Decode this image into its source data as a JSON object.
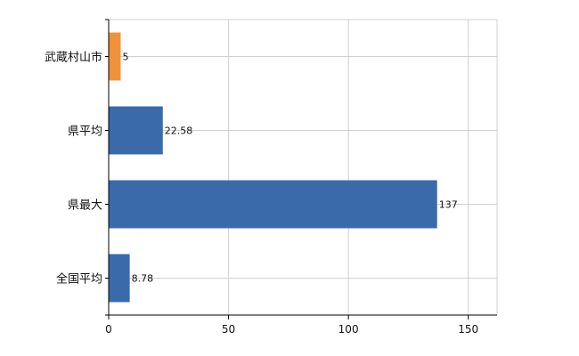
{
  "chart_data": {
    "type": "bar",
    "orientation": "horizontal",
    "categories": [
      "武蔵村山市",
      "県平均",
      "県最大",
      "全国平均"
    ],
    "values": [
      5,
      22.58,
      137,
      8.78
    ],
    "value_labels": [
      "5",
      "22.58",
      "137",
      "8.78"
    ],
    "bar_colors": [
      "#F0923A",
      "#3A6AAA",
      "#3A6AAA",
      "#3A6AAA"
    ],
    "xlim": [
      0,
      162
    ],
    "xticks": [
      0,
      50,
      100,
      150
    ],
    "xtick_labels": [
      "0",
      "50",
      "100",
      "150"
    ],
    "grid": true,
    "legend": "none",
    "title": "",
    "xlabel": "",
    "ylabel": ""
  }
}
